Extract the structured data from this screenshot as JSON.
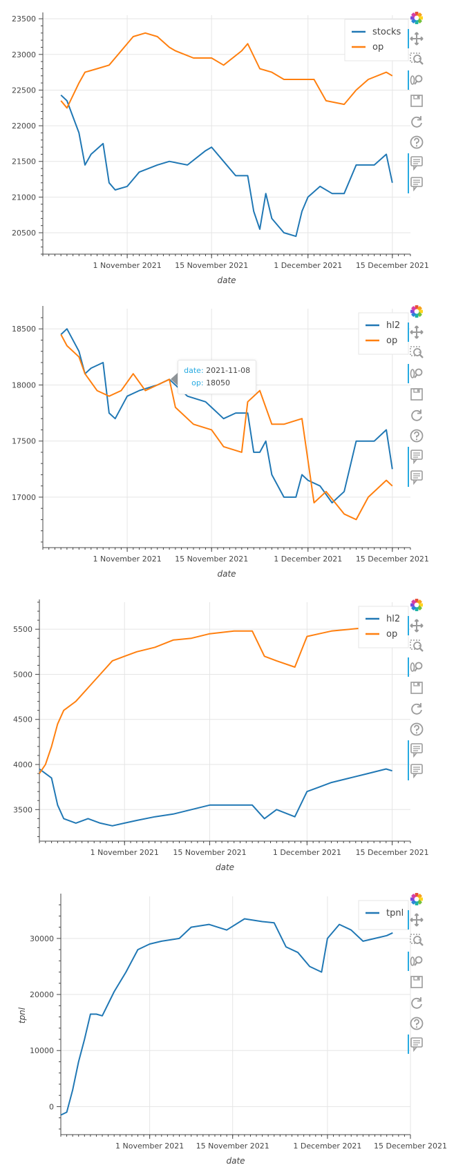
{
  "colors": {
    "blue": "#1f77b4",
    "orange": "#ff7f0e",
    "grid": "#e5e5e5",
    "axis": "#444444",
    "toolbar_accent": "#26aae1"
  },
  "toolbar_tools": [
    "bokeh-logo-icon",
    "pan-icon",
    "box-zoom-icon",
    "wheel-zoom-icon",
    "save-icon",
    "reset-icon",
    "help-icon",
    "hover-icon"
  ],
  "chart_data": [
    {
      "type": "line",
      "title": "",
      "xlabel": "date",
      "ylabel": "",
      "x_ticks": [
        "2021-11-01",
        "2021-11-15",
        "2021-12-01",
        "2021-12-15"
      ],
      "x_tick_labels": [
        "1 November 2021",
        "15 November 2021",
        "1 December 2021",
        "15 December 2021"
      ],
      "xlim": [
        "2021-10-18",
        "2021-12-18"
      ],
      "ylim": [
        20200,
        23550
      ],
      "y_ticks": [
        20500,
        21000,
        21500,
        22000,
        22500,
        23000,
        23500
      ],
      "grid": true,
      "legend": "top-right",
      "hover_tools": 2,
      "series": [
        {
          "name": "stocks",
          "color": "#1f77b4",
          "x": [
            "2021-10-21",
            "2021-10-22",
            "2021-10-24",
            "2021-10-25",
            "2021-10-26",
            "2021-10-28",
            "2021-10-29",
            "2021-10-30",
            "2021-11-01",
            "2021-11-03",
            "2021-11-06",
            "2021-11-08",
            "2021-11-11",
            "2021-11-14",
            "2021-11-15",
            "2021-11-17",
            "2021-11-19",
            "2021-11-21",
            "2021-11-22",
            "2021-11-23",
            "2021-11-24",
            "2021-11-25",
            "2021-11-27",
            "2021-11-29",
            "2021-11-30",
            "2021-12-01",
            "2021-12-03",
            "2021-12-05",
            "2021-12-07",
            "2021-12-09",
            "2021-12-12",
            "2021-12-14",
            "2021-12-15"
          ],
          "values": [
            22430,
            22350,
            21900,
            21450,
            21600,
            21750,
            21200,
            21100,
            21150,
            21350,
            21450,
            21500,
            21450,
            21650,
            21700,
            21500,
            21300,
            21300,
            20800,
            20550,
            21050,
            20700,
            20500,
            20450,
            20800,
            21000,
            21150,
            21050,
            21050,
            21450,
            21450,
            21600,
            21200
          ]
        },
        {
          "name": "op",
          "color": "#ff7f0e",
          "x": [
            "2021-10-21",
            "2021-10-22",
            "2021-10-24",
            "2021-10-25",
            "2021-10-27",
            "2021-10-29",
            "2021-10-31",
            "2021-11-02",
            "2021-11-04",
            "2021-11-06",
            "2021-11-08",
            "2021-11-09",
            "2021-11-12",
            "2021-11-15",
            "2021-11-17",
            "2021-11-20",
            "2021-11-21",
            "2021-11-23",
            "2021-11-25",
            "2021-11-27",
            "2021-11-30",
            "2021-12-02",
            "2021-12-04",
            "2021-12-07",
            "2021-12-09",
            "2021-12-11",
            "2021-12-14",
            "2021-12-15"
          ],
          "values": [
            22350,
            22250,
            22600,
            22750,
            22800,
            22850,
            23050,
            23250,
            23300,
            23250,
            23100,
            23050,
            22950,
            22950,
            22850,
            23050,
            23150,
            22800,
            22750,
            22650,
            22650,
            22650,
            22350,
            22300,
            22500,
            22650,
            22750,
            22700
          ]
        }
      ]
    },
    {
      "type": "line",
      "title": "",
      "xlabel": "date",
      "ylabel": "",
      "x_ticks": [
        "2021-11-01",
        "2021-11-15",
        "2021-12-01",
        "2021-12-15"
      ],
      "x_tick_labels": [
        "1 November 2021",
        "15 November 2021",
        "1 December 2021",
        "15 December 2021"
      ],
      "xlim": [
        "2021-10-18",
        "2021-12-18"
      ],
      "ylim": [
        16550,
        18680
      ],
      "y_ticks": [
        17000,
        17500,
        18000,
        18500
      ],
      "grid": true,
      "legend": "top-right",
      "hover_tools": 2,
      "tooltip": {
        "date_key": "date:",
        "date_value": "2021-11-08",
        "op_key": "op:",
        "op_value": "18050",
        "at_x": "2021-11-08",
        "at_y": 18050
      },
      "series": [
        {
          "name": "hl2",
          "color": "#1f77b4",
          "x": [
            "2021-10-21",
            "2021-10-22",
            "2021-10-24",
            "2021-10-25",
            "2021-10-26",
            "2021-10-28",
            "2021-10-29",
            "2021-10-30",
            "2021-11-01",
            "2021-11-03",
            "2021-11-06",
            "2021-11-08",
            "2021-11-11",
            "2021-11-14",
            "2021-11-15",
            "2021-11-17",
            "2021-11-19",
            "2021-11-21",
            "2021-11-22",
            "2021-11-23",
            "2021-11-24",
            "2021-11-25",
            "2021-11-27",
            "2021-11-29",
            "2021-11-30",
            "2021-12-01",
            "2021-12-03",
            "2021-12-05",
            "2021-12-07",
            "2021-12-09",
            "2021-12-12",
            "2021-12-14",
            "2021-12-15"
          ],
          "values": [
            18450,
            18500,
            18300,
            18100,
            18150,
            18200,
            17750,
            17700,
            17900,
            17950,
            18000,
            18050,
            17900,
            17850,
            17800,
            17700,
            17750,
            17750,
            17400,
            17400,
            17500,
            17200,
            17000,
            17000,
            17200,
            17150,
            17100,
            16950,
            17050,
            17500,
            17500,
            17600,
            17250
          ]
        },
        {
          "name": "op",
          "color": "#ff7f0e",
          "x": [
            "2021-10-21",
            "2021-10-22",
            "2021-10-24",
            "2021-10-25",
            "2021-10-27",
            "2021-10-29",
            "2021-10-31",
            "2021-11-02",
            "2021-11-04",
            "2021-11-06",
            "2021-11-08",
            "2021-11-09",
            "2021-11-12",
            "2021-11-15",
            "2021-11-17",
            "2021-11-20",
            "2021-11-21",
            "2021-11-23",
            "2021-11-25",
            "2021-11-27",
            "2021-11-30",
            "2021-12-02",
            "2021-12-04",
            "2021-12-07",
            "2021-12-09",
            "2021-12-11",
            "2021-12-14",
            "2021-12-15"
          ],
          "values": [
            18450,
            18350,
            18250,
            18100,
            17950,
            17900,
            17950,
            18100,
            17950,
            18000,
            18050,
            17800,
            17650,
            17600,
            17450,
            17400,
            17850,
            17950,
            17650,
            17650,
            17700,
            16950,
            17050,
            16850,
            16800,
            17000,
            17150,
            17100
          ]
        }
      ]
    },
    {
      "type": "line",
      "title": "",
      "xlabel": "date",
      "ylabel": "",
      "x_ticks": [
        "2021-11-01",
        "2021-11-15",
        "2021-12-01",
        "2021-12-15"
      ],
      "x_tick_labels": [
        "1 November 2021",
        "15 November 2021",
        "1 December 2021",
        "15 December 2021"
      ],
      "xlim": [
        "2021-10-18",
        "2021-12-18"
      ],
      "ylim": [
        3150,
        5800
      ],
      "y_ticks": [
        3500,
        4000,
        4500,
        5000,
        5500
      ],
      "grid": true,
      "legend": "top-right",
      "hover_tools": 2,
      "series": [
        {
          "name": "hl2",
          "color": "#1f77b4",
          "x": [
            "2021-10-18",
            "2021-10-19",
            "2021-10-20",
            "2021-10-21",
            "2021-10-22",
            "2021-10-24",
            "2021-10-26",
            "2021-10-28",
            "2021-10-30",
            "2021-11-01",
            "2021-11-03",
            "2021-11-06",
            "2021-11-09",
            "2021-11-12",
            "2021-11-15",
            "2021-11-19",
            "2021-11-22",
            "2021-11-24",
            "2021-11-26",
            "2021-11-29",
            "2021-12-01",
            "2021-12-03",
            "2021-12-05",
            "2021-12-08",
            "2021-12-11",
            "2021-12-14",
            "2021-12-15"
          ],
          "values": [
            3950,
            3900,
            3850,
            3550,
            3400,
            3350,
            3400,
            3350,
            3320,
            3350,
            3380,
            3420,
            3450,
            3500,
            3550,
            3550,
            3550,
            3400,
            3500,
            3420,
            3700,
            3750,
            3800,
            3850,
            3900,
            3950,
            3930
          ]
        },
        {
          "name": "op",
          "color": "#ff7f0e",
          "x": [
            "2021-10-18",
            "2021-10-19",
            "2021-10-20",
            "2021-10-21",
            "2021-10-22",
            "2021-10-24",
            "2021-10-26",
            "2021-10-28",
            "2021-10-30",
            "2021-11-01",
            "2021-11-03",
            "2021-11-06",
            "2021-11-09",
            "2021-11-12",
            "2021-11-15",
            "2021-11-19",
            "2021-11-22",
            "2021-11-24",
            "2021-11-26",
            "2021-11-29",
            "2021-12-01",
            "2021-12-03",
            "2021-12-05",
            "2021-12-08",
            "2021-12-11",
            "2021-12-14",
            "2021-12-15"
          ],
          "values": [
            3900,
            4000,
            4200,
            4450,
            4600,
            4700,
            4850,
            5000,
            5150,
            5200,
            5250,
            5300,
            5380,
            5400,
            5450,
            5480,
            5480,
            5200,
            5150,
            5080,
            5420,
            5450,
            5480,
            5500,
            5520,
            5550,
            5560
          ]
        }
      ]
    },
    {
      "type": "line",
      "title": "",
      "xlabel": "date",
      "ylabel": "tpnl",
      "x_ticks": [
        "2021-11-01",
        "2021-11-15",
        "2021-12-01",
        "2021-12-15"
      ],
      "x_tick_labels": [
        "1 November 2021",
        "15 November 2021",
        "1 December 2021",
        "15 December 2021"
      ],
      "xlim": [
        "2021-10-17",
        "2021-12-15"
      ],
      "ylim": [
        -5000,
        37500
      ],
      "y_ticks": [
        0,
        10000,
        20000,
        30000
      ],
      "grid": true,
      "legend": "top-right",
      "hover_tools": 1,
      "series": [
        {
          "name": "tpnl",
          "color": "#1f77b4",
          "x": [
            "2021-10-17",
            "2021-10-18",
            "2021-10-19",
            "2021-10-20",
            "2021-10-21",
            "2021-10-22",
            "2021-10-23",
            "2021-10-24",
            "2021-10-26",
            "2021-10-28",
            "2021-10-30",
            "2021-11-01",
            "2021-11-03",
            "2021-11-06",
            "2021-11-08",
            "2021-11-11",
            "2021-11-14",
            "2021-11-17",
            "2021-11-20",
            "2021-11-22",
            "2021-11-24",
            "2021-11-26",
            "2021-11-28",
            "2021-11-30",
            "2021-12-01",
            "2021-12-03",
            "2021-12-05",
            "2021-12-07",
            "2021-12-09",
            "2021-12-11",
            "2021-12-12"
          ],
          "values": [
            -1500,
            -1000,
            3000,
            8000,
            12000,
            16500,
            16500,
            16200,
            20500,
            24000,
            28000,
            29000,
            29500,
            30000,
            32000,
            32500,
            31500,
            33500,
            33000,
            32800,
            28500,
            27500,
            25000,
            24000,
            30000,
            32500,
            31500,
            29500,
            30000,
            30500,
            31000
          ]
        }
      ]
    }
  ]
}
